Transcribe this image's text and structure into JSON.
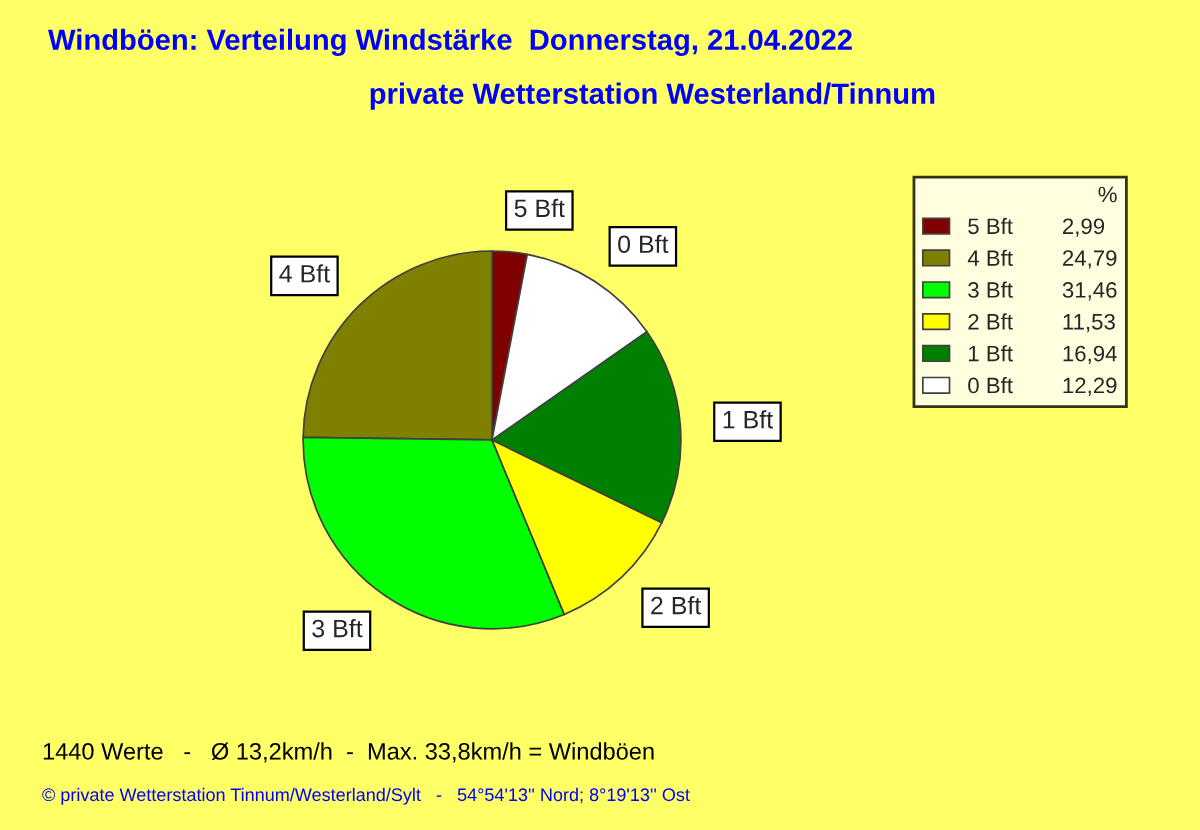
{
  "chart_data": {
    "type": "pie",
    "title": "Windböen: Verteilung Windstärke  Donnerstag, 21.04.2022",
    "subtitle": "private Wetterstation Westerland/Tinnum",
    "categories": [
      "5 Bft",
      "4 Bft",
      "3 Bft",
      "2 Bft",
      "1 Bft",
      "0 Bft"
    ],
    "values": [
      2.99,
      24.79,
      31.46,
      11.53,
      16.94,
      12.29
    ],
    "value_labels": [
      "2,99",
      "24,79",
      "31,46",
      "11,53",
      "16,94",
      "12,29"
    ],
    "colors": [
      "#800000",
      "#808000",
      "#00ff00",
      "#ffff00",
      "#008000",
      "#ffffff"
    ],
    "legend_title": "%",
    "legend": "top right",
    "annotations": [
      "1440 Werte   -   Ø 13,2km/h  -  Max. 33,8km/h = Windböen",
      "© private Wetterstation Tinnum/Westerland/Sylt   -   54°54'13'' Nord; 8°19'13'' Ost"
    ]
  }
}
